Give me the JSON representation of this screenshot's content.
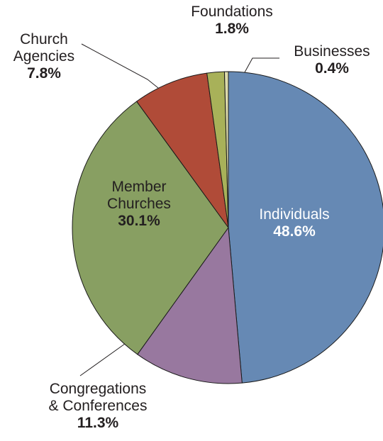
{
  "chart_data": {
    "type": "pie",
    "title": "",
    "slices": [
      {
        "name": "Individuals",
        "label_lines": [
          "Individuals"
        ],
        "pct_label": "48.6%",
        "value": 48.6,
        "color": "#6689b4",
        "label_color": "#ffffff",
        "label_placement": "inside"
      },
      {
        "name": "Congregations & Conferences",
        "label_lines": [
          "Congregations",
          "& Conferences"
        ],
        "pct_label": "11.3%",
        "value": 11.3,
        "color": "#98789f",
        "label_color": "#231f20",
        "label_placement": "outside"
      },
      {
        "name": "Member Churches",
        "label_lines": [
          "Member",
          "Churches"
        ],
        "pct_label": "30.1%",
        "value": 30.1,
        "color": "#889f62",
        "label_color": "#231f20",
        "label_placement": "inside"
      },
      {
        "name": "Church Agencies",
        "label_lines": [
          "Church",
          "Agencies"
        ],
        "pct_label": "7.8%",
        "value": 7.8,
        "color": "#b04b38",
        "label_color": "#231f20",
        "label_placement": "outside"
      },
      {
        "name": "Foundations",
        "label_lines": [
          "Foundations"
        ],
        "pct_label": "1.8%",
        "value": 1.8,
        "color": "#a8b159",
        "label_color": "#231f20",
        "label_placement": "outside"
      },
      {
        "name": "Businesses",
        "label_lines": [
          "Businesses"
        ],
        "pct_label": "0.4%",
        "value": 0.4,
        "color": "#dddbab",
        "label_color": "#231f20",
        "label_placement": "outside"
      }
    ],
    "start_angle_deg": 0,
    "direction": "clockwise",
    "legend": "none"
  }
}
